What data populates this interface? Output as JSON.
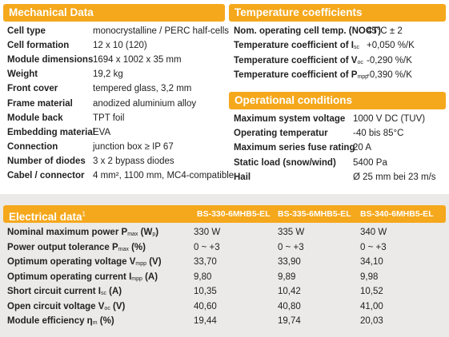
{
  "mechanical": {
    "title": "Mechanical Data",
    "rows": [
      {
        "label": "Cell type",
        "value": "monocrystalline / PERC half-cells"
      },
      {
        "label": "Cell formation",
        "value": "12 x 10 (120)"
      },
      {
        "label": "Module dimensions",
        "value": "1694 x 1002 x 35 mm"
      },
      {
        "label": "Weight",
        "value": "19,2 kg"
      },
      {
        "label": "Front cover",
        "value": "tempered glass, 3,2 mm"
      },
      {
        "label": "Frame material",
        "value": "anodized aluminium alloy"
      },
      {
        "label": "Module back",
        "value": "TPT foil"
      },
      {
        "label": "Embedding material",
        "value": "EVA"
      },
      {
        "label": "Connection",
        "value": "junction box ≥ IP 67"
      },
      {
        "label": "Number of diodes",
        "value": "3 x 2 bypass diodes"
      },
      {
        "label": "Cabel / connector",
        "value": "4 mm², 1100 mm, MC4-compatible"
      }
    ]
  },
  "temperature": {
    "title": "Temperature coefficients",
    "rows": [
      {
        "label": "Nom. operating cell temp. (NOCT)",
        "label_sub": "",
        "label_end": "",
        "value": "45°C ± 2"
      },
      {
        "label": "Temperature coefficient of I",
        "label_sub": "sc",
        "label_end": "",
        "value": "+0,050 %/K"
      },
      {
        "label": "Temperature coefficient of V",
        "label_sub": "oc",
        "label_end": "",
        "value": "-0,290 %/K"
      },
      {
        "label": "Temperature coefficient of P",
        "label_sub": "mpp",
        "label_end": "",
        "value": "-0,390 %/K"
      }
    ]
  },
  "operational": {
    "title": "Operational conditions",
    "rows": [
      {
        "label": "Maximum system voltage",
        "value": "1000 V DC (TUV)"
      },
      {
        "label": "Operating temperatur",
        "value": "-40 bis 85°C"
      },
      {
        "label": "Maximum series fuse rating",
        "value": "20 A"
      },
      {
        "label": "Static load (snow/wind)",
        "value": "5400 Pa"
      },
      {
        "label": "Hail",
        "value": "Ø 25 mm bei 23 m/s"
      }
    ]
  },
  "electrical": {
    "title": "Electrical data",
    "title_sup": "1",
    "columns": [
      "BS-330-6MHB5-EL",
      "BS-335-6MHB5-EL",
      "BS-340-6MHB5-EL"
    ],
    "rows": [
      {
        "label": "Nominal maximum power P",
        "label_sub": "max",
        "label_end": " (W",
        "label_sub2": "p",
        "label_end2": ")",
        "values": [
          "330 W",
          "335 W",
          "340 W"
        ]
      },
      {
        "label": "Power output tolerance P",
        "label_sub": "max",
        "label_end": " (%)",
        "label_sub2": "",
        "label_end2": "",
        "values": [
          "0 ~ +3",
          "0 ~ +3",
          "0 ~ +3"
        ]
      },
      {
        "label": "Optimum operating voltage V",
        "label_sub": "mpp",
        "label_end": " (V)",
        "label_sub2": "",
        "label_end2": "",
        "values": [
          "33,70",
          "33,90",
          "34,10"
        ]
      },
      {
        "label": "Optimum operating current I",
        "label_sub": "mpp",
        "label_end": " (A)",
        "label_sub2": "",
        "label_end2": "",
        "values": [
          "9,80",
          "9,89",
          "9,98"
        ]
      },
      {
        "label": "Short circuit current I",
        "label_sub": "sc",
        "label_end": " (A)",
        "label_sub2": "",
        "label_end2": "",
        "values": [
          "10,35",
          "10,42",
          "10,52"
        ]
      },
      {
        "label": "Open circuit voltage V",
        "label_sub": "oc",
        "label_end": " (V)",
        "label_sub2": "",
        "label_end2": "",
        "values": [
          "40,60",
          "40,80",
          "41,00"
        ]
      },
      {
        "label": "Module efficiency η",
        "label_sub": "m",
        "label_end": " (%)",
        "label_sub2": "",
        "label_end2": "",
        "values": [
          "19,44",
          "19,74",
          "20,03"
        ]
      }
    ]
  },
  "colors": {
    "accent": "#f5a81c",
    "bottom_bg": "#eceae8"
  }
}
